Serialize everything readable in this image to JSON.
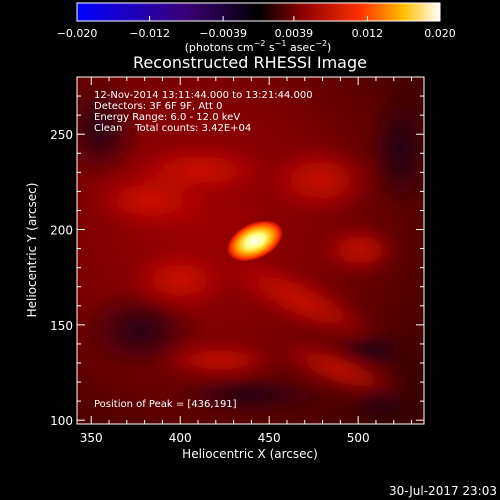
{
  "colorbar": {
    "tick_labels": [
      "−0.020",
      "−0.012",
      "−0.0039",
      "0.0039",
      "0.012",
      "0.020"
    ],
    "range": [
      -0.02,
      0.02
    ],
    "unit_main": "(photons cm",
    "unit_exp1": "−2",
    "unit_mid": " s",
    "unit_exp2": "−1",
    "unit_mid2": " asec",
    "unit_exp3": "−2",
    "unit_end": ")",
    "colors": [
      "#0000ff",
      "#4b0082",
      "#000000",
      "#7f0000",
      "#ff4500",
      "#ffd700",
      "#ffffff"
    ]
  },
  "plot": {
    "title": "Reconstructed RHESSI Image",
    "xlabel": "Heliocentric X (arcsec)",
    "ylabel": "Heliocentric Y (arcsec)",
    "xticks": [
      "350",
      "400",
      "450",
      "500"
    ],
    "yticks": [
      "100",
      "150",
      "200",
      "250"
    ],
    "xlim": [
      342,
      537
    ],
    "ylim": [
      98,
      280
    ],
    "info_lines": [
      "12-Nov-2014 13:11:44.000 to 13:21:44.000",
      "Detectors: 3F 6F 9F, Att 0",
      "Energy Range: 6.0 - 12.0 keV",
      "Clean    Total counts: 3.42E+04"
    ],
    "peak_label": "Position of Peak = [436,191]",
    "peak": [
      436,
      191
    ]
  },
  "footer": {
    "timestamp": "30-Jul-2017 23:03"
  }
}
